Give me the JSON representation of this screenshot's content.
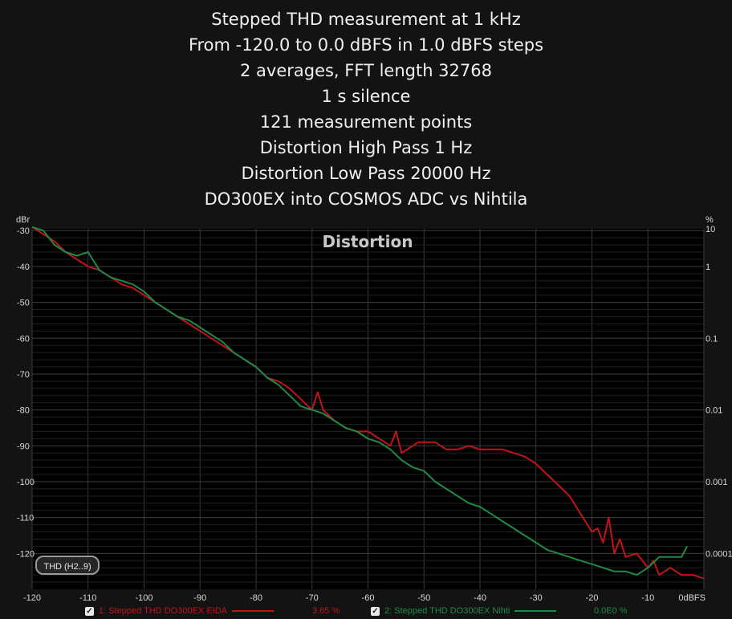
{
  "header_lines": [
    "Stepped THD measurement at 1 kHz",
    "From -120.0 to 0.0 dBFS in 1.0 dBFS steps",
    "2 averages, FFT length 32768",
    "1 s silence",
    "121 measurement points",
    "Distortion High Pass 1 Hz",
    "Distortion Low Pass 20000 Hz",
    "DO300EX into COSMOS ADC vs Nihtila"
  ],
  "thd_button": "THD (H2..9)",
  "legend": [
    {
      "check": "✓",
      "label": "1: Stepped THD DO300EX EIDA",
      "value": "3.65 %",
      "color": "#c0141a"
    },
    {
      "check": "✓",
      "label": "2: Stepped THD DO300EX Nihti",
      "value": "0.0E0 %",
      "color": "#1f8a46"
    }
  ],
  "chart_data": {
    "type": "line",
    "title": "Distortion",
    "xlabel": "dBFS",
    "ylabel": "dBr",
    "y2label": "%",
    "xlim": [
      -120,
      0
    ],
    "ylim": [
      -130,
      -29.5
    ],
    "x_ticks": [
      "-120",
      "-110",
      "-100",
      "-90",
      "-80",
      "-70",
      "-60",
      "-50",
      "-40",
      "-30",
      "-20",
      "-10",
      "0dBFS"
    ],
    "y_ticks": [
      "-30",
      "-40",
      "-50",
      "-60",
      "-70",
      "-80",
      "-90",
      "-100",
      "-110",
      "-120"
    ],
    "y2_ticks": [
      "10",
      "1",
      "0.1",
      "0.01",
      "0.001",
      "0.0001"
    ],
    "grid": true,
    "series": [
      {
        "name": "1: Stepped THD DO300EX EIDA",
        "color": "#c0141a",
        "x": [
          -120,
          -118,
          -116,
          -114,
          -112,
          -110,
          -108,
          -106,
          -104,
          -102,
          -100,
          -98,
          -96,
          -94,
          -92,
          -90,
          -88,
          -86,
          -84,
          -82,
          -80,
          -78,
          -76,
          -74,
          -72,
          -70,
          -69,
          -68,
          -66,
          -64,
          -62,
          -60,
          -58,
          -56,
          -55,
          -54,
          -52,
          -51,
          -50,
          -48,
          -46,
          -44,
          -42,
          -40,
          -38,
          -36,
          -34,
          -32,
          -30,
          -28,
          -26,
          -24,
          -22,
          -20,
          -19,
          -18,
          -17,
          -16,
          -15,
          -14,
          -12,
          -10,
          -9,
          -8,
          -6,
          -4,
          -2,
          0
        ],
        "y": [
          -29,
          -31,
          -33,
          -36,
          -38,
          -40,
          -41,
          -43,
          -45,
          -46,
          -48,
          -50,
          -52,
          -54,
          -56,
          -58,
          -60,
          -62,
          -64,
          -66,
          -68,
          -71,
          -72,
          -74,
          -77,
          -80,
          -75,
          -80,
          -83,
          -85,
          -86,
          -86,
          -88,
          -90,
          -86,
          -92,
          -90,
          -89,
          -89,
          -89,
          -91,
          -91,
          -90,
          -91,
          -91,
          -91,
          -92,
          -93,
          -95,
          -98,
          -101,
          -104,
          -109,
          -114,
          -113,
          -117,
          -110,
          -120,
          -116,
          -121,
          -120,
          -124,
          -122,
          -126,
          -124,
          -126,
          -126,
          -127
        ]
      },
      {
        "name": "2: Stepped THD DO300EX Nihti",
        "color": "#1f8a46",
        "x": [
          -120,
          -118,
          -116,
          -114,
          -112,
          -110,
          -108,
          -106,
          -104,
          -102,
          -100,
          -98,
          -96,
          -94,
          -92,
          -90,
          -88,
          -86,
          -84,
          -82,
          -80,
          -78,
          -76,
          -74,
          -72,
          -70,
          -68,
          -66,
          -64,
          -62,
          -60,
          -58,
          -56,
          -54,
          -52,
          -50,
          -48,
          -46,
          -44,
          -42,
          -40,
          -38,
          -36,
          -34,
          -32,
          -30,
          -28,
          -26,
          -24,
          -22,
          -20,
          -18,
          -16,
          -14,
          -12,
          -10,
          -8,
          -6,
          -4,
          -3
        ],
        "y": [
          -29,
          -30,
          -34,
          -36,
          -37,
          -36,
          -41,
          -43,
          -44,
          -45,
          -47,
          -50,
          -52,
          -54,
          -55,
          -57,
          -59,
          -61,
          -64,
          -66,
          -68,
          -71,
          -73,
          -76,
          -79,
          -80,
          -81,
          -83,
          -85,
          -86,
          -88,
          -89,
          -91,
          -94,
          -96,
          -97,
          -100,
          -102,
          -104,
          -106,
          -107,
          -109,
          -111,
          -113,
          -115,
          -117,
          -119,
          -120,
          -121,
          -122,
          -123,
          -124,
          -125,
          -125,
          -126,
          -124,
          -121,
          -121,
          -121,
          -118
        ]
      }
    ]
  }
}
